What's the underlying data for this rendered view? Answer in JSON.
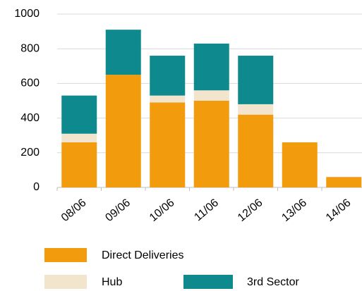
{
  "chart_data": {
    "type": "stacked_bar",
    "categories": [
      "08/06",
      "09/06",
      "10/06",
      "11/06",
      "12/06",
      "13/06",
      "14/06"
    ],
    "series": [
      {
        "name": "Direct Deliveries",
        "color": "#f29b0c",
        "values": [
          260,
          650,
          490,
          500,
          420,
          260,
          60
        ]
      },
      {
        "name": "Hub",
        "color": "#f3e4cd",
        "values": [
          50,
          0,
          40,
          60,
          60,
          0,
          0
        ]
      },
      {
        "name": "3rd Sector",
        "color": "#0e8a8f",
        "values": [
          220,
          260,
          230,
          270,
          280,
          0,
          0
        ]
      }
    ],
    "ylim": [
      0,
      1000
    ],
    "yticks": [
      0,
      200,
      400,
      600,
      800,
      1000
    ],
    "grid": true
  }
}
